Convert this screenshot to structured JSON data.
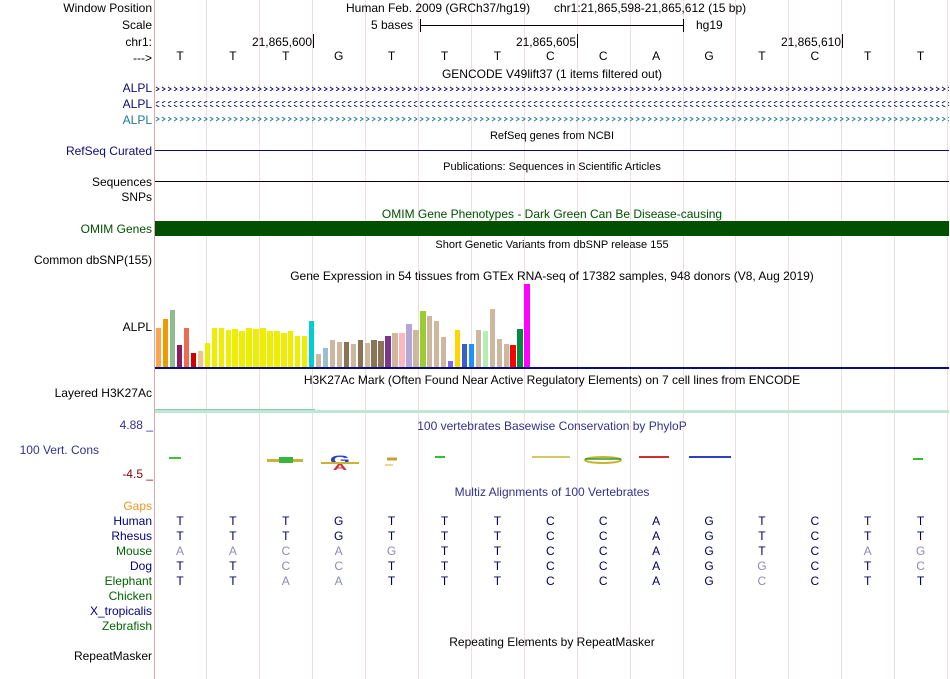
{
  "header": {
    "labels": [
      "Window Position",
      "Scale",
      "chr1:",
      "--->"
    ],
    "assembly": "Human Feb. 2009 (GRCh37/hg19)",
    "position": "chr1:21,865,598-21,865,612 (15 bp)",
    "scale_text": "5 bases",
    "scale_db": "hg19",
    "ticks": [
      "21,865,600",
      "21,865,605",
      "21,865,610"
    ]
  },
  "reference_bases": [
    "T",
    "T",
    "T",
    "G",
    "T",
    "T",
    "T",
    "C",
    "C",
    "A",
    "G",
    "T",
    "C",
    "T",
    "T"
  ],
  "tracks": {
    "gencode": {
      "title": "GENCODE V49lift37 (1 items filtered out)",
      "items": [
        "ALPL",
        "ALPL",
        "ALPL"
      ],
      "colors": [
        "#0c0c78",
        "#0c0c78",
        "#1f77a5"
      ]
    },
    "refseq": {
      "title": "RefSeq genes from NCBI",
      "label": "RefSeq Curated"
    },
    "publications": {
      "title": "Publications: Sequences in Scientific Articles",
      "label": "Sequences"
    },
    "snps": {
      "label": "SNPs"
    },
    "omim": {
      "title": "OMIM Gene Phenotypes - Dark Green Can Be Disease-causing",
      "label": "OMIM Genes",
      "color": "#005000"
    },
    "dbsnp": {
      "title": "Short Genetic Variants from dbSNP release 155",
      "label": "Common dbSNP(155)"
    },
    "gtex": {
      "title": "Gene Expression in 54 tissues from GTEx RNA-seq of 17382 samples, 948 donors (V8, Aug 2019)",
      "label": "ALPL",
      "values": [
        0.47,
        0.58,
        0.69,
        0.26,
        0.47,
        0.17,
        0.19,
        0.29,
        0.47,
        0.47,
        0.44,
        0.46,
        0.43,
        0.47,
        0.46,
        0.47,
        0.43,
        0.43,
        0.41,
        0.43,
        0.37,
        0.37,
        0.55,
        0.16,
        0.23,
        0.33,
        0.3,
        0.3,
        0.28,
        0.33,
        0.29,
        0.33,
        0.31,
        0.37,
        0.41,
        0.41,
        0.52,
        0.44,
        0.68,
        0.62,
        0.56,
        0.36,
        0.07,
        0.44,
        0.28,
        0.28,
        0.44,
        0.43,
        0.7,
        0.34,
        0.28,
        0.26,
        0.46,
        1.0
      ],
      "colors": [
        "#ffa54f",
        "#ee9a00",
        "#8fbc8f",
        "#8b1c62",
        "#ee6a50",
        "#cd0000",
        "#eec591",
        "#eeee00",
        "#eeee00",
        "#eeee00",
        "#eeee00",
        "#eeee00",
        "#eeee00",
        "#eeee00",
        "#eeee00",
        "#eeee00",
        "#eeee00",
        "#eeee00",
        "#eeee00",
        "#eeee00",
        "#eeee00",
        "#eeee00",
        "#00ced1",
        "#cdb79e",
        "#9ac0cd",
        "#cdb79e",
        "#cdb79e",
        "#8b7355",
        "#cdb79e",
        "#8b7355",
        "#cdb79e",
        "#8b7355",
        "#8b7355",
        "#7a378b",
        "#cdb79e",
        "#ffb6c1",
        "#b4a7d6",
        "#cdb79e",
        "#9acd32",
        "#cdb79e",
        "#cdb79e",
        "#cdb79e",
        "#7b68ee",
        "#ffd700",
        "#3a5fcd",
        "#1e90ff",
        "#cdb79e",
        "#b4eeb4",
        "#cdb79e",
        "#cdb79e",
        "#cdb79e",
        "#ff0000",
        "#008b45",
        "#ff00ff"
      ]
    },
    "h3k27ac": {
      "title": "H3K27Ac Mark (Often Found Near Active Regulatory Elements) on 7 cell lines from ENCODE",
      "label": "Layered H3K27Ac"
    },
    "phylop": {
      "title": "100 vertebrates Basewise Conservation by PhyloP",
      "label": "100 Vert. Cons",
      "max": "4.88 _",
      "min": "-4.5 _"
    },
    "multiz": {
      "title": "Multiz Alignments of 100 Vertebrates",
      "gaps_label": "Gaps",
      "species": [
        {
          "name": "Human",
          "color": "#000080",
          "bases": [
            "T",
            "T",
            "T",
            "G",
            "T",
            "T",
            "T",
            "C",
            "C",
            "A",
            "G",
            "T",
            "C",
            "T",
            "T"
          ],
          "dim": []
        },
        {
          "name": "Rhesus",
          "color": "#000080",
          "bases": [
            "T",
            "T",
            "T",
            "G",
            "T",
            "T",
            "T",
            "C",
            "C",
            "A",
            "G",
            "T",
            "C",
            "T",
            "T"
          ],
          "dim": []
        },
        {
          "name": "Mouse",
          "color": "#006400",
          "bases": [
            "A",
            "A",
            "C",
            "A",
            "G",
            "T",
            "T",
            "C",
            "C",
            "A",
            "G",
            "T",
            "C",
            "A",
            "G"
          ],
          "dim": [
            0,
            1,
            2,
            3,
            4,
            13,
            14
          ]
        },
        {
          "name": "Dog",
          "color": "#000080",
          "bases": [
            "T",
            "T",
            "C",
            "C",
            "T",
            "T",
            "T",
            "C",
            "C",
            "A",
            "G",
            "G",
            "C",
            "T",
            "C"
          ],
          "dim": [
            2,
            3,
            11,
            14
          ]
        },
        {
          "name": "Elephant",
          "color": "#006400",
          "bases": [
            "T",
            "T",
            "A",
            "A",
            "T",
            "T",
            "T",
            "C",
            "C",
            "A",
            "G",
            "C",
            "C",
            "T",
            "T"
          ],
          "dim": [
            2,
            3,
            11
          ]
        },
        {
          "name": "Chicken",
          "color": "#006400",
          "bases": [],
          "dim": []
        },
        {
          "name": "X_tropicalis",
          "color": "#000080",
          "bases": [],
          "dim": []
        },
        {
          "name": "Zebrafish",
          "color": "#006400",
          "bases": [],
          "dim": []
        }
      ]
    },
    "repeatmasker": {
      "title": "Repeating Elements by RepeatMasker",
      "label": "RepeatMasker"
    }
  }
}
